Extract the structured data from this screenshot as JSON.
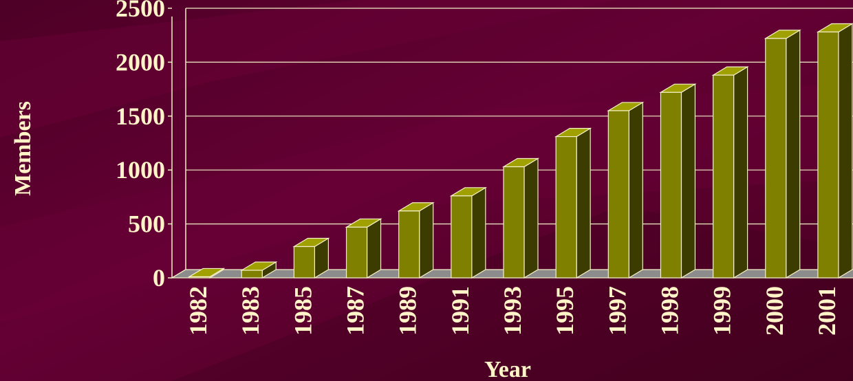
{
  "chart_data": {
    "type": "bar",
    "style": "3d",
    "xlabel": "Year",
    "ylabel": "Members",
    "categories": [
      "1982",
      "1983",
      "1985",
      "1987",
      "1989",
      "1991",
      "1993",
      "1995",
      "1997",
      "1998",
      "1999",
      "2000",
      "2001"
    ],
    "values": [
      10,
      70,
      290,
      470,
      620,
      760,
      1030,
      1310,
      1550,
      1720,
      1880,
      2220,
      2280
    ],
    "ylim": [
      0,
      2500
    ],
    "yticks": [
      0,
      500,
      1000,
      1500,
      2000,
      2500
    ],
    "grid": true,
    "colors": {
      "background": "#5a0030",
      "bar_front": "#808000",
      "bar_side": "#3c3c00",
      "bar_top": "#a0a000",
      "outline": "#f5f0c8",
      "floor": "#8c8c8c",
      "text": "#fff4c8"
    }
  }
}
